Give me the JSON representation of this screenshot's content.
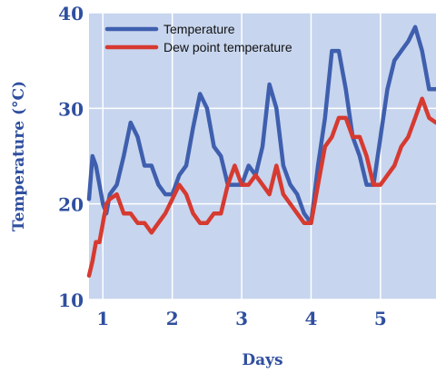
{
  "chart_data": {
    "type": "line",
    "title": "",
    "xlabel": "Days",
    "ylabel": "Temperature (°C)",
    "xlim": [
      0.8,
      5.8
    ],
    "ylim": [
      10,
      40
    ],
    "x_ticks": [
      1,
      2,
      3,
      4,
      5
    ],
    "x_tick_labels": [
      "1",
      "2",
      "3",
      "4",
      "5"
    ],
    "y_ticks": [
      10,
      20,
      30,
      40
    ],
    "y_tick_labels": [
      "10",
      "20",
      "30",
      "40"
    ],
    "grid": true,
    "legend_position": "top-left",
    "colors": {
      "plot_background": "#c7d5ee",
      "grid": "#ffffff",
      "label": "#2f4f9f"
    },
    "series": [
      {
        "name": "Temperature",
        "color": "#3f5fae",
        "x": [
          0.8,
          0.85,
          0.9,
          0.95,
          1.0,
          1.05,
          1.1,
          1.2,
          1.3,
          1.4,
          1.5,
          1.6,
          1.7,
          1.8,
          1.9,
          2.0,
          2.1,
          2.2,
          2.3,
          2.4,
          2.5,
          2.6,
          2.7,
          2.8,
          2.9,
          3.0,
          3.1,
          3.2,
          3.3,
          3.4,
          3.5,
          3.6,
          3.7,
          3.8,
          3.9,
          4.0,
          4.1,
          4.2,
          4.3,
          4.4,
          4.5,
          4.6,
          4.7,
          4.8,
          4.9,
          5.0,
          5.1,
          5.2,
          5.3,
          5.4,
          5.5,
          5.6,
          5.7,
          5.8
        ],
        "y": [
          20.5,
          25,
          24,
          22,
          20,
          19,
          21,
          22,
          25,
          28.5,
          27,
          24,
          24,
          22,
          21,
          21,
          23,
          24,
          28,
          31.5,
          30,
          26,
          25,
          22,
          22,
          22,
          24,
          23,
          26,
          32.5,
          30,
          24,
          22,
          21,
          19,
          18,
          24,
          29,
          36,
          36,
          32,
          27,
          25,
          22,
          22,
          27,
          32,
          35,
          36,
          37,
          38.5,
          36,
          32,
          32
        ]
      },
      {
        "name": "Dew point temperature",
        "color": "#d63a30",
        "x": [
          0.8,
          0.85,
          0.9,
          0.95,
          1.0,
          1.05,
          1.1,
          1.2,
          1.3,
          1.4,
          1.5,
          1.6,
          1.7,
          1.8,
          1.9,
          2.0,
          2.1,
          2.2,
          2.3,
          2.4,
          2.5,
          2.6,
          2.7,
          2.8,
          2.9,
          3.0,
          3.1,
          3.2,
          3.3,
          3.4,
          3.5,
          3.6,
          3.7,
          3.8,
          3.9,
          4.0,
          4.1,
          4.2,
          4.3,
          4.4,
          4.5,
          4.6,
          4.7,
          4.8,
          4.9,
          5.0,
          5.1,
          5.2,
          5.3,
          5.4,
          5.5,
          5.6,
          5.7,
          5.8
        ],
        "y": [
          12.5,
          14,
          16,
          16,
          18,
          20,
          20.5,
          21,
          19,
          19,
          18,
          18,
          17,
          18,
          19,
          20.5,
          22,
          21,
          19,
          18,
          18,
          19,
          19,
          22,
          24,
          22,
          22,
          23,
          22,
          21,
          24,
          21,
          20,
          19,
          18,
          18,
          22,
          26,
          27,
          29,
          29,
          27,
          27,
          25,
          22,
          22,
          23,
          24,
          26,
          27,
          29,
          31,
          29,
          28.5
        ]
      }
    ]
  }
}
